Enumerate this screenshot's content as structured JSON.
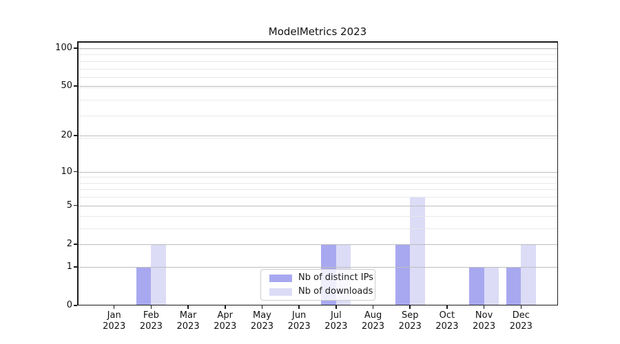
{
  "chart_data": {
    "type": "bar",
    "title": "ModelMetrics 2023",
    "categories": [
      "Jan",
      "Feb",
      "Mar",
      "Apr",
      "May",
      "Jun",
      "Jul",
      "Aug",
      "Sep",
      "Oct",
      "Nov",
      "Dec"
    ],
    "category_year": "2023",
    "series": [
      {
        "name": "Nb of distinct IPs",
        "color": "#a8a8f0",
        "values": [
          0,
          1,
          0,
          0,
          0,
          0,
          2,
          0,
          2,
          0,
          1,
          1
        ]
      },
      {
        "name": "Nb of downloads",
        "color": "#dcdcf7",
        "values": [
          0,
          2,
          0,
          0,
          0,
          0,
          2,
          0,
          6,
          0,
          1,
          2
        ]
      }
    ],
    "yscale": "log1p",
    "yticks": [
      0,
      1,
      2,
      5,
      10,
      20,
      50,
      100
    ],
    "minor_gridlines": [
      1,
      2,
      3,
      4,
      5,
      6,
      7,
      8,
      9,
      19,
      29,
      39,
      49,
      59,
      69,
      79,
      89,
      99
    ],
    "ylim": [
      0,
      113
    ],
    "xlabel": "",
    "ylabel": "",
    "grid": "horizontal",
    "legend_position": "lower center",
    "colors": {
      "major_grid": "#bdbdbd",
      "minor_grid": "#e9e9e9",
      "axis": "#1a1a1a",
      "text": "#111111",
      "legend_border": "#cccccc"
    }
  }
}
